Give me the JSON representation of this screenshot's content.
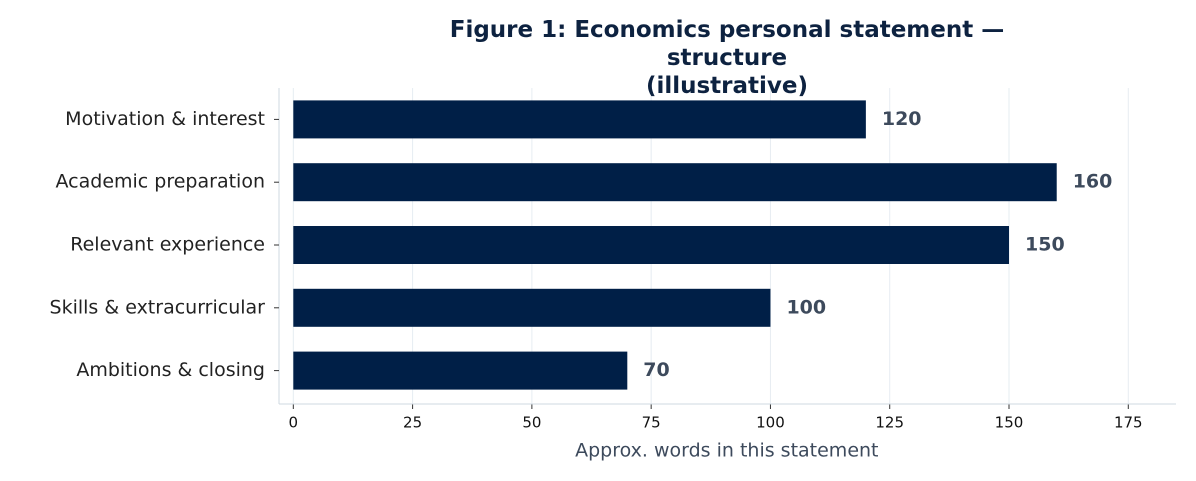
{
  "chart_data": {
    "type": "hbar",
    "title": "Figure 1: Economics personal statement — structure\n(illustrative)",
    "xlabel": "Approx. words in this statement",
    "categories": [
      "Motivation & interest",
      "Academic preparation",
      "Relevant experience",
      "Skills & extracurricular",
      "Ambitions & closing"
    ],
    "values": [
      120,
      160,
      150,
      100,
      70
    ],
    "color": "#001f47",
    "xlim": [
      -3,
      185
    ],
    "xticks": [
      0,
      25,
      50,
      75,
      100,
      125,
      150,
      175
    ],
    "grid": true
  }
}
